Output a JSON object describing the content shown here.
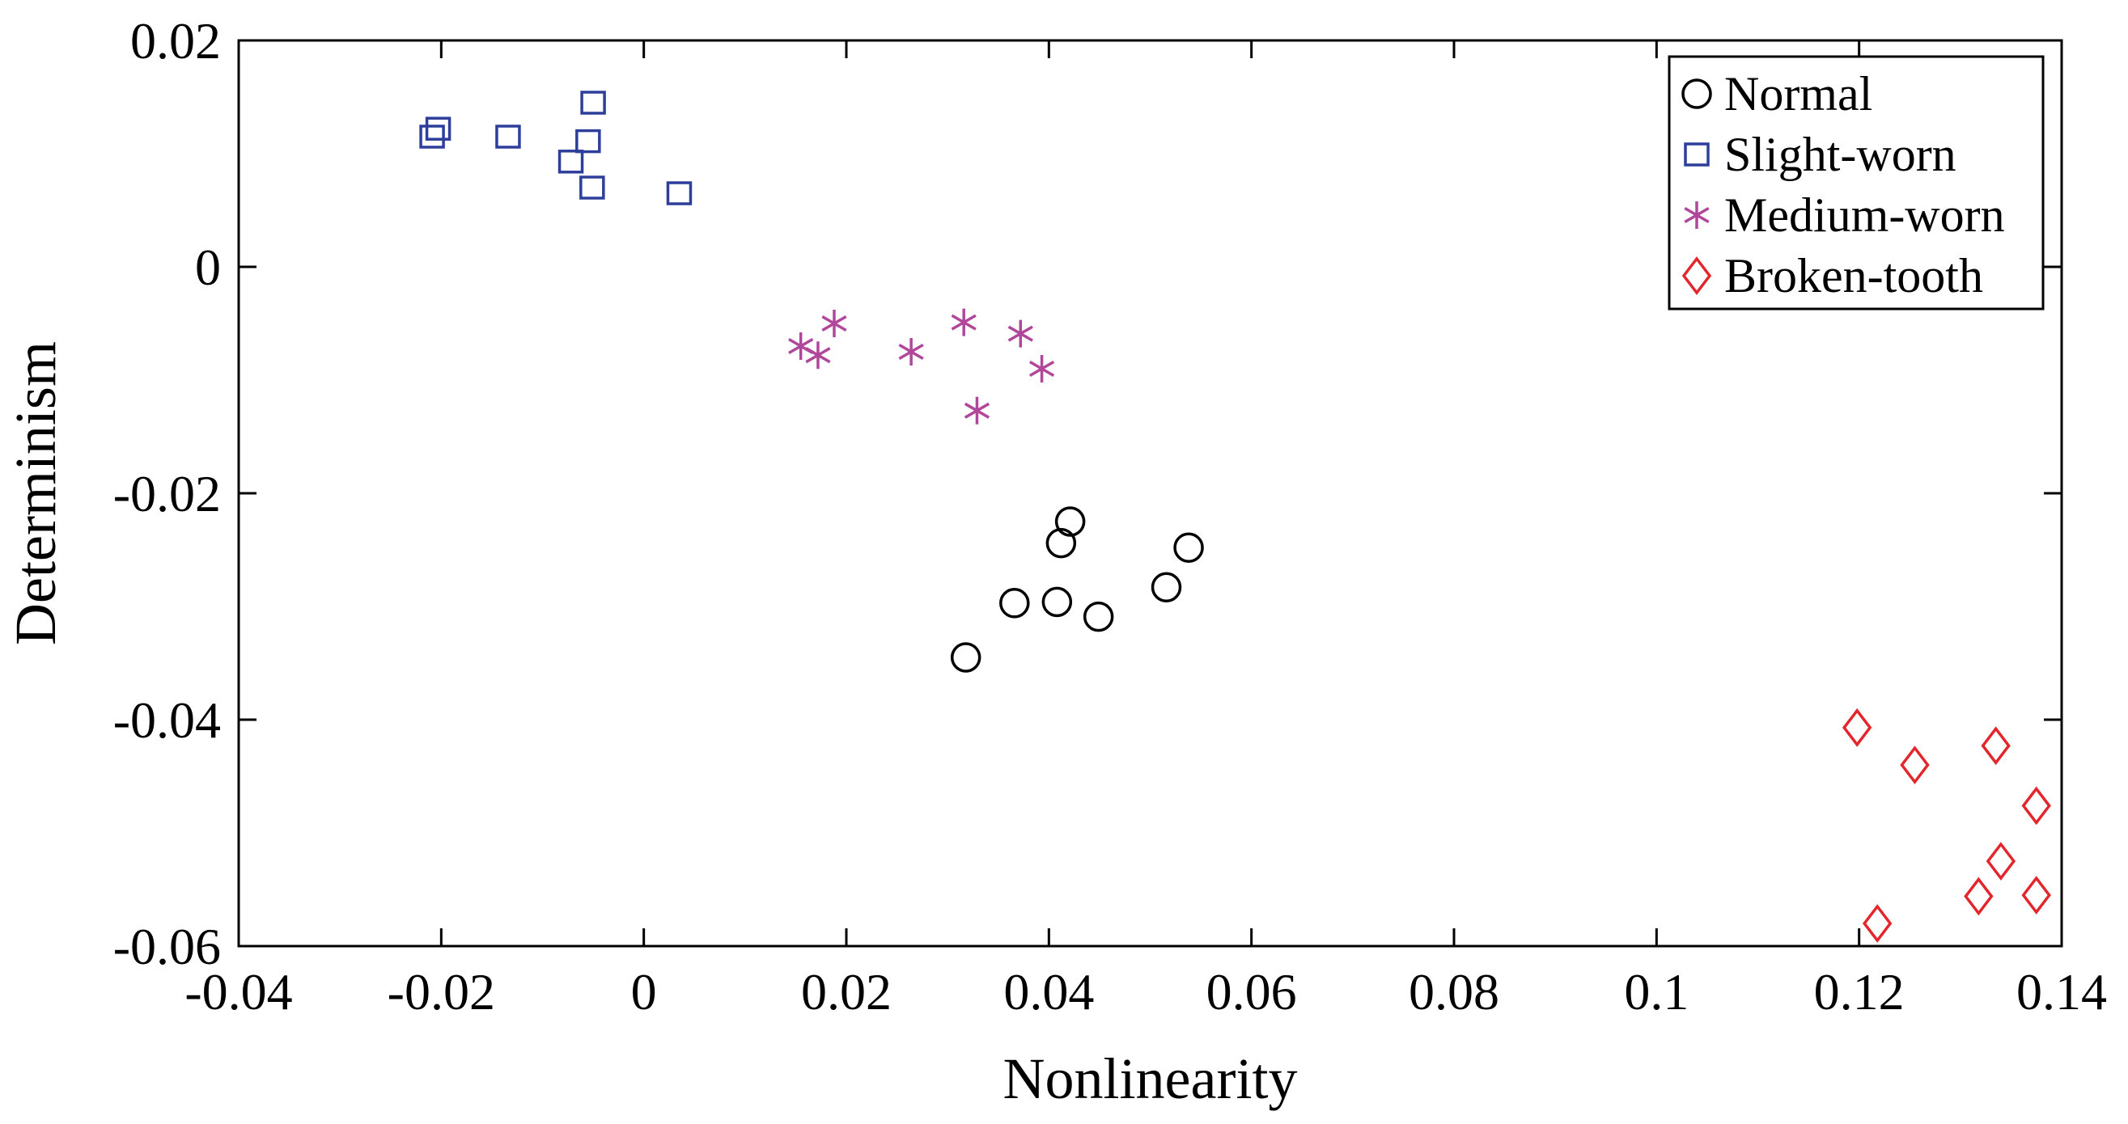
{
  "chart_data": {
    "type": "scatter",
    "title": "",
    "xlabel": "Nonlinearity",
    "ylabel": "Determinism",
    "xlim": [
      -0.04,
      0.14
    ],
    "ylim": [
      -0.06,
      0.02
    ],
    "xticks": [
      -0.04,
      -0.02,
      0,
      0.02,
      0.04,
      0.06,
      0.08,
      0.1,
      0.12,
      0.14
    ],
    "xtick_labels": [
      "-0.04",
      "-0.02",
      "0",
      "0.02",
      "0.04",
      "0.06",
      "0.08",
      "0.1",
      "0.12",
      "0.14"
    ],
    "yticks": [
      0.02,
      0,
      -0.02,
      -0.04,
      -0.06
    ],
    "ytick_labels": [
      "0.02",
      "0",
      "-0.02",
      "-0.04",
      "-0.06"
    ],
    "grid": false,
    "legend_position": "top-right",
    "series": [
      {
        "name": "Normal",
        "marker": "circle",
        "color": "#000000",
        "points": [
          {
            "x": 0.0318,
            "y": -0.0345
          },
          {
            "x": 0.0366,
            "y": -0.0297
          },
          {
            "x": 0.0408,
            "y": -0.0296
          },
          {
            "x": 0.0412,
            "y": -0.0244
          },
          {
            "x": 0.0421,
            "y": -0.0225
          },
          {
            "x": 0.0449,
            "y": -0.0309
          },
          {
            "x": 0.0516,
            "y": -0.0283
          },
          {
            "x": 0.0538,
            "y": -0.0248
          }
        ]
      },
      {
        "name": "Slight-worn",
        "marker": "square",
        "color": "#2e3f9b",
        "points": [
          {
            "x": -0.0209,
            "y": 0.0115
          },
          {
            "x": -0.0203,
            "y": 0.0122
          },
          {
            "x": -0.0134,
            "y": 0.0115
          },
          {
            "x": -0.0072,
            "y": 0.0093
          },
          {
            "x": -0.0055,
            "y": 0.0111
          },
          {
            "x": -0.005,
            "y": 0.0145
          },
          {
            "x": -0.0051,
            "y": 0.007
          },
          {
            "x": 0.0035,
            "y": 0.0065
          }
        ]
      },
      {
        "name": "Medium-worn",
        "marker": "asterisk",
        "color": "#b0479b",
        "points": [
          {
            "x": 0.0155,
            "y": -0.007
          },
          {
            "x": 0.0172,
            "y": -0.0078
          },
          {
            "x": 0.0188,
            "y": -0.005
          },
          {
            "x": 0.0264,
            "y": -0.0075
          },
          {
            "x": 0.0316,
            "y": -0.0049
          },
          {
            "x": 0.0329,
            "y": -0.0127
          },
          {
            "x": 0.0372,
            "y": -0.0059
          },
          {
            "x": 0.0393,
            "y": -0.009
          }
        ]
      },
      {
        "name": "Broken-tooth",
        "marker": "diamond",
        "color": "#e3262b",
        "points": [
          {
            "x": 0.1198,
            "y": -0.0407
          },
          {
            "x": 0.1218,
            "y": -0.058
          },
          {
            "x": 0.1255,
            "y": -0.044
          },
          {
            "x": 0.1318,
            "y": -0.0556
          },
          {
            "x": 0.1335,
            "y": -0.0423
          },
          {
            "x": 0.134,
            "y": -0.0525
          },
          {
            "x": 0.1375,
            "y": -0.0476
          },
          {
            "x": 0.1375,
            "y": -0.0555
          }
        ]
      }
    ]
  }
}
